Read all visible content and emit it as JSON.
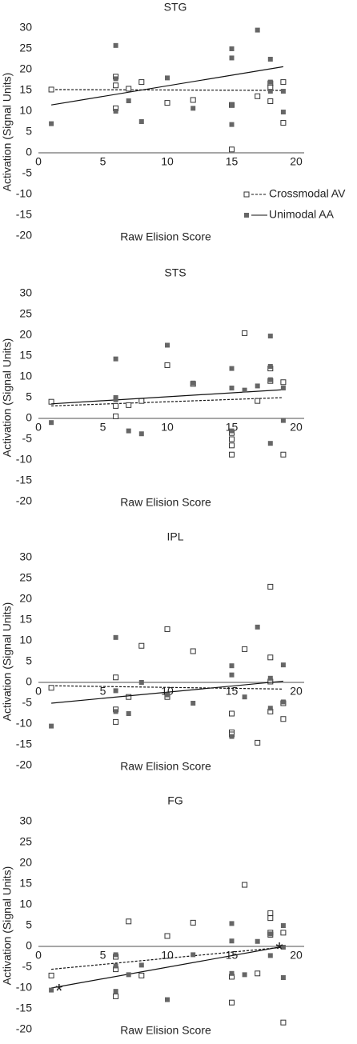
{
  "chart_data": [
    {
      "type": "scatter",
      "title": "STG",
      "x_label": "Raw Elision Score",
      "y_label": "Activation (Signal Units)",
      "xlim": [
        0,
        20
      ],
      "ylim": [
        -20,
        30
      ],
      "xticks": [
        0,
        5,
        10,
        15,
        20
      ],
      "yticks": [
        -20,
        -15,
        -10,
        -5,
        0,
        5,
        10,
        15,
        20,
        25,
        30
      ],
      "legend": true,
      "series": [
        {
          "name": "Crossmodal AV",
          "color": "#333333",
          "marker": "open",
          "x": [
            1,
            6,
            6,
            6,
            7,
            8,
            10,
            12,
            15,
            15,
            17,
            18,
            18,
            18,
            19,
            19
          ],
          "values": [
            15.2,
            18.3,
            16.2,
            10.7,
            15.4,
            17,
            12,
            12.7,
            11.5,
            0.8,
            13.6,
            16.7,
            15.7,
            12.4,
            17,
            7.2
          ],
          "trendline": {
            "x": [
              1,
              19
            ],
            "values": [
              15.2,
              15
            ],
            "dash": true
          }
        },
        {
          "name": "Unimodal AA",
          "color": "#666666",
          "marker": "filled",
          "x": [
            1,
            6,
            6,
            6,
            7,
            8,
            10,
            12,
            15,
            15,
            15,
            15,
            17,
            18,
            18,
            18,
            19,
            19
          ],
          "values": [
            7,
            25.8,
            17.8,
            10,
            12.5,
            7.5,
            18,
            10.7,
            25,
            22.8,
            11.5,
            6.8,
            29.5,
            22.5,
            17,
            14.8,
            14.8,
            9.8
          ],
          "trendline": {
            "x": [
              1,
              19
            ],
            "values": [
              11.5,
              20.7
            ],
            "dash": false
          }
        }
      ]
    },
    {
      "type": "scatter",
      "title": "STS",
      "x_label": "Raw Elision Score",
      "y_label": "Activation (Signal Units)",
      "xlim": [
        0,
        20
      ],
      "ylim": [
        -20,
        30
      ],
      "xticks": [
        0,
        5,
        10,
        15,
        20
      ],
      "yticks": [
        -20,
        -15,
        -10,
        -5,
        0,
        5,
        10,
        15,
        20,
        25,
        30
      ],
      "legend": false,
      "series": [
        {
          "color": "#333333",
          "marker": "open",
          "x": [
            1,
            6,
            6,
            7,
            8,
            10,
            12,
            15,
            15,
            15,
            15,
            16,
            17,
            18,
            18,
            19,
            19
          ],
          "values": [
            4,
            0.5,
            3,
            3.2,
            4.2,
            12.8,
            8.3,
            -3.5,
            -5,
            -6.5,
            -8.7,
            20.5,
            4.2,
            12,
            9,
            8.7,
            -8.7
          ],
          "trendline": {
            "x": [
              1,
              19
            ],
            "values": [
              3,
              5
            ],
            "dash": true
          }
        },
        {
          "color": "#666666",
          "marker": "filled",
          "x": [
            1,
            6,
            6,
            6,
            7,
            8,
            10,
            12,
            15,
            15,
            15,
            16,
            17,
            18,
            18,
            18,
            18,
            19,
            19
          ],
          "values": [
            -1,
            14.3,
            5,
            4.5,
            -3,
            -3.7,
            17.6,
            8.5,
            12,
            7.3,
            -3,
            6.8,
            7.8,
            19.8,
            12.5,
            9.3,
            -6,
            7.3,
            -0.5
          ],
          "trendline": {
            "x": [
              1,
              19
            ],
            "values": [
              3.5,
              6.9
            ],
            "dash": false
          }
        }
      ]
    },
    {
      "type": "scatter",
      "title": "IPL",
      "x_label": "Raw Elision Score",
      "y_label": "Activation (Signal Units)",
      "xlim": [
        0,
        20
      ],
      "ylim": [
        -20,
        30
      ],
      "xticks": [
        0,
        5,
        10,
        15,
        20
      ],
      "yticks": [
        -20,
        -15,
        -10,
        -5,
        0,
        5,
        10,
        15,
        20,
        25,
        30
      ],
      "legend": false,
      "series": [
        {
          "color": "#333333",
          "marker": "open",
          "x": [
            1,
            6,
            6,
            6,
            7,
            8,
            10,
            10,
            12,
            15,
            15,
            15,
            16,
            17,
            18,
            18,
            18,
            18,
            19,
            19
          ],
          "values": [
            -1.3,
            1.2,
            -6.5,
            -9.5,
            -3.5,
            8.8,
            12.8,
            -3.5,
            7.5,
            -7.5,
            -12,
            -12.5,
            8,
            -14.5,
            23,
            6,
            0.2,
            -7,
            -5,
            -8.8
          ],
          "trendline": {
            "x": [
              1,
              19
            ],
            "values": [
              -0.8,
              -1.6
            ],
            "dash": true
          }
        },
        {
          "color": "#666666",
          "marker": "filled",
          "x": [
            1,
            6,
            6,
            6,
            7,
            8,
            10,
            12,
            15,
            15,
            15,
            16,
            17,
            18,
            18,
            19,
            19
          ],
          "values": [
            -10.5,
            10.8,
            -2,
            -7,
            -7.5,
            0,
            -3,
            -5,
            4,
            1.8,
            -13,
            -3.5,
            13.3,
            1,
            -6.2,
            4.2,
            -4.7
          ],
          "trendline": {
            "x": [
              1,
              19
            ],
            "values": [
              -5,
              0.3
            ],
            "dash": false
          }
        }
      ]
    },
    {
      "type": "scatter",
      "title": "FG",
      "x_label": "Raw Elision Score",
      "y_label": "Activation (Signal Units)",
      "xlim": [
        0,
        20
      ],
      "ylim": [
        -20,
        30
      ],
      "xticks": [
        0,
        5,
        10,
        15,
        20
      ],
      "yticks": [
        -20,
        -15,
        -10,
        -5,
        0,
        5,
        10,
        15,
        20,
        25,
        30
      ],
      "legend": false,
      "series": [
        {
          "color": "#333333",
          "marker": "open",
          "x": [
            1,
            6,
            6,
            6,
            7,
            8,
            10,
            12,
            15,
            15,
            16,
            17,
            18,
            18,
            18,
            18,
            19,
            19
          ],
          "values": [
            -7,
            -2.5,
            -5.5,
            -12,
            6,
            -7,
            2.5,
            5.7,
            -7.3,
            -13.5,
            14.8,
            -6.5,
            8,
            6.8,
            3.3,
            2.8,
            3.3,
            -18.3
          ],
          "trendline": {
            "x": [
              1,
              19
            ],
            "values": [
              -5.5,
              -0.2
            ],
            "dash": true
          }
        },
        {
          "color": "#666666",
          "marker": "filled",
          "x": [
            1,
            6,
            6,
            6,
            7,
            8,
            10,
            12,
            15,
            15,
            15,
            16,
            17,
            18,
            18,
            19,
            19,
            19
          ],
          "values": [
            -10.5,
            -2,
            -4.7,
            -10.8,
            -6.8,
            -4.5,
            -12.8,
            -2,
            5.5,
            1.3,
            -6.5,
            -6.8,
            1.2,
            3,
            -2.2,
            5,
            -0.2,
            -7.5
          ],
          "trendline": {
            "x": [
              1,
              19
            ],
            "values": [
              -10,
              0
            ],
            "dash": false
          }
        }
      ],
      "annotations": [
        {
          "text": "*",
          "x": 1.6,
          "y": -10
        },
        {
          "text": "*",
          "x": 18.7,
          "y": 0
        }
      ]
    }
  ]
}
